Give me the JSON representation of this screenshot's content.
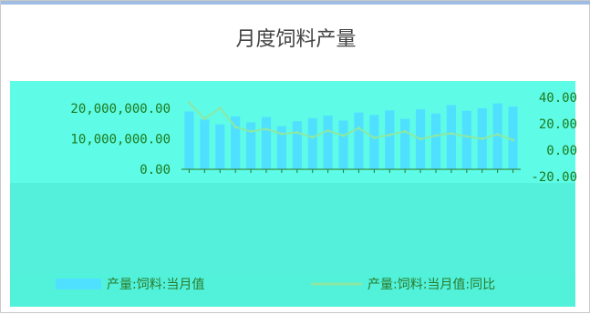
{
  "chart_data": {
    "type": "line",
    "title": "月度饲料产量",
    "y_left_ticks": [
      "20,000,000.00",
      "10,000,000.00",
      "0.00"
    ],
    "y_right_ticks": [
      "40.00",
      "20.00",
      "0.00",
      "-20.00"
    ],
    "x_ticks": [
      "",
      "",
      "",
      "",
      "",
      "",
      "",
      "",
      "",
      "",
      "",
      "",
      "",
      "",
      "",
      "",
      "",
      "",
      "",
      "",
      "",
      ""
    ],
    "series": [
      {
        "name": "产量:饲料:当月值",
        "type": "bar",
        "color": "#4fe0ff",
        "values": [
          16.5,
          14.2,
          12.8,
          15.1,
          13.4,
          14.9,
          12.3,
          13.7,
          14.6,
          15.3,
          13.9,
          16.2,
          15.5,
          16.8,
          14.4,
          17.1,
          15.9,
          18.3,
          16.7,
          17.4,
          18.8,
          17.9
        ]
      },
      {
        "name": "产量:饲料:当月值:同比",
        "type": "line",
        "color": "#8de8a3",
        "values": [
          30.5,
          18.2,
          26.4,
          12.1,
          8.6,
          10.5,
          6.8,
          7.9,
          4.2,
          9.3,
          5.5,
          11.2,
          3.8,
          6.1,
          8.7,
          2.9,
          5.6,
          7.2,
          4.9,
          3.1,
          6.4,
          2.2
        ]
      }
    ],
    "y_left_range": [
      0,
      20000000
    ],
    "y_right_range": [
      -20,
      40
    ],
    "legend": {
      "position": "bottom"
    }
  },
  "title_text": "月度饲料产量",
  "legend_items": [
    {
      "label": "产量:饲料:当月值"
    },
    {
      "label": "产量:饲料:当月值:同比"
    }
  ]
}
